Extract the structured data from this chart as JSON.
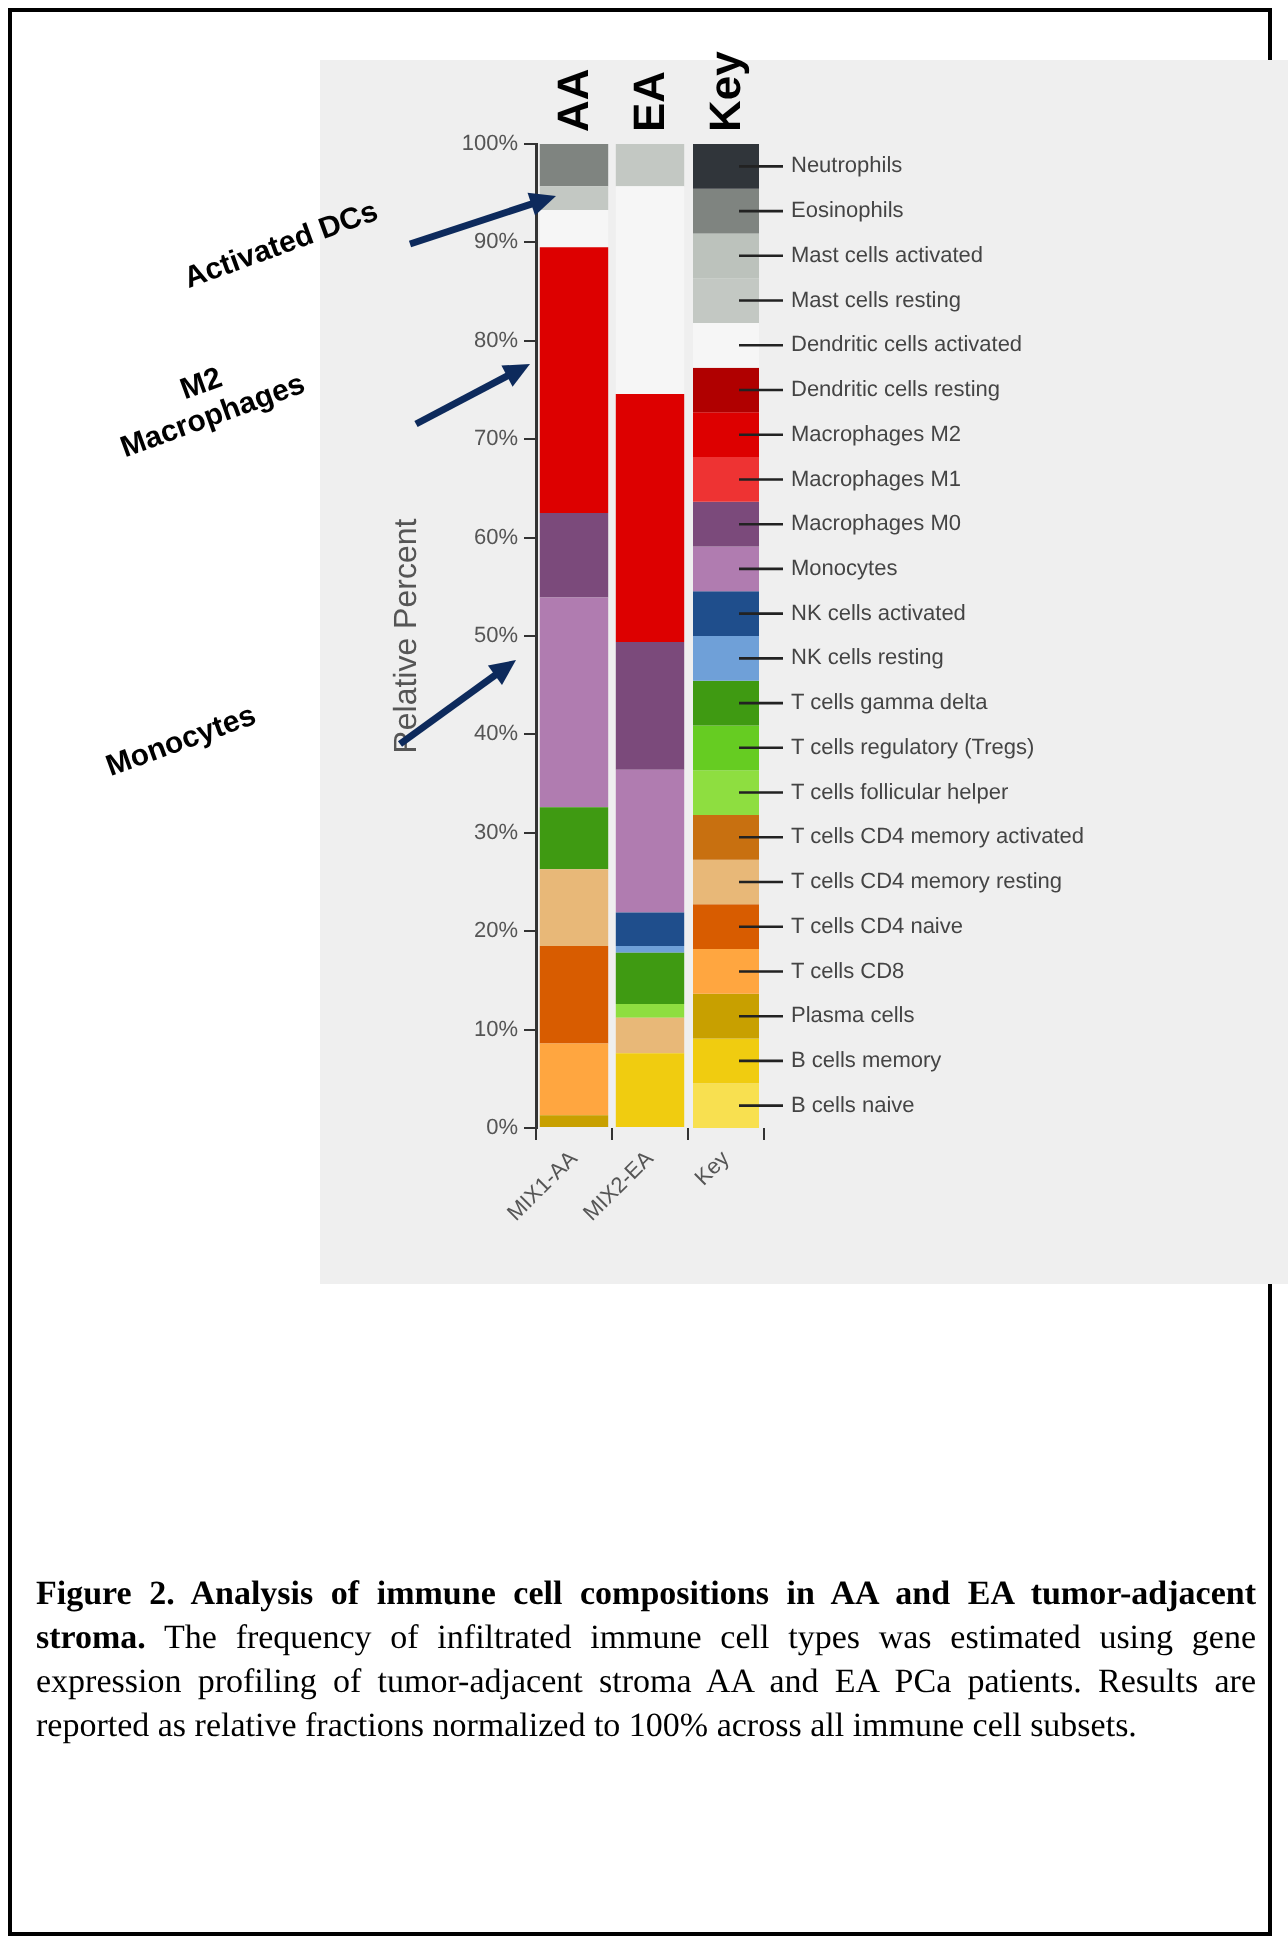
{
  "chart_data": {
    "type": "bar",
    "stacked": true,
    "ylabel": "Relative Percent",
    "categories": [
      "MIX1-AA",
      "MIX2-EA",
      "Key"
    ],
    "series": [
      {
        "name": "B cells naive",
        "color": "#f8e050",
        "values": [
          null,
          null,
          null
        ]
      },
      {
        "name": "B cells memory",
        "color": "#f0cc10",
        "values": [
          null,
          7.6,
          null
        ]
      },
      {
        "name": "Plasma cells",
        "color": "#c8a000",
        "values": [
          1.3,
          null,
          null
        ]
      },
      {
        "name": "T cells CD8",
        "color": "#ffa640",
        "values": [
          7.3,
          null,
          null
        ]
      },
      {
        "name": "T cells CD4 naive",
        "color": "#d85c00",
        "values": [
          9.9,
          null,
          null
        ]
      },
      {
        "name": "T cells CD4 memory resting",
        "color": "#e8b878",
        "values": [
          7.8,
          3.6,
          null
        ]
      },
      {
        "name": "T cells CD4 memory activated",
        "color": "#c87010",
        "values": [
          null,
          null,
          null
        ]
      },
      {
        "name": "T cells follicular helper",
        "color": "#8ede40",
        "values": [
          null,
          1.4,
          null
        ]
      },
      {
        "name": "T cells regulatory (Tregs)",
        "color": "#66cc22",
        "values": [
          null,
          null,
          null
        ]
      },
      {
        "name": "T cells gamma delta",
        "color": "#3f9a12",
        "values": [
          6.3,
          5.2,
          null
        ]
      },
      {
        "name": "NK cells resting",
        "color": "#6fa0d8",
        "values": [
          null,
          0.7,
          null
        ]
      },
      {
        "name": "NK cells activated",
        "color": "#1f4e8c",
        "values": [
          null,
          3.4,
          null
        ]
      },
      {
        "name": "Monocytes",
        "color": "#b07cb0",
        "values": [
          21.3,
          14.5,
          null
        ]
      },
      {
        "name": "Macrophages M0",
        "color": "#7b4a7b",
        "values": [
          8.6,
          13.0,
          null
        ]
      },
      {
        "name": "Macrophages M1",
        "color": "#ee3333",
        "values": [
          null,
          null,
          null
        ]
      },
      {
        "name": "Macrophages M2",
        "color": "#dd0000",
        "values": [
          27.0,
          25.2,
          null
        ]
      },
      {
        "name": "Dendritic cells resting",
        "color": "#b00000",
        "values": [
          null,
          null,
          null
        ]
      },
      {
        "name": "Dendritic cells activated",
        "color": "#f6f6f6",
        "values": [
          3.8,
          21.1,
          null
        ]
      },
      {
        "name": "Mast cells resting",
        "color": "#c3c8c3",
        "values": [
          2.4,
          4.3,
          null
        ]
      },
      {
        "name": "Mast cells activated",
        "color": "#bcc2bc",
        "values": [
          null,
          null,
          null
        ]
      },
      {
        "name": "Eosinophils",
        "color": "#7f8480",
        "values": [
          4.3,
          null,
          null
        ]
      },
      {
        "name": "Neutrophils",
        "color": "#30353a",
        "values": [
          null,
          null,
          null
        ]
      }
    ],
    "ylim": [
      0,
      100
    ],
    "yticks": [
      {
        "value": 0,
        "label": "0%"
      },
      {
        "value": 10,
        "label": "10%"
      },
      {
        "value": 20,
        "label": "20%"
      },
      {
        "value": 30,
        "label": "30%"
      },
      {
        "value": 40,
        "label": "40%"
      },
      {
        "value": 50,
        "label": "50%"
      },
      {
        "value": 60,
        "label": "60%"
      },
      {
        "value": 70,
        "label": "70%"
      },
      {
        "value": 80,
        "label": "80%"
      },
      {
        "value": 90,
        "label": "90%"
      },
      {
        "value": 100,
        "label": "100%"
      }
    ],
    "grid": false,
    "legend": "right",
    "annotations": [
      "AA",
      "EA",
      "Key",
      "Activated DCs",
      "M2 Macrophages",
      "Monocytes",
      "Figure 2. Analysis of immune cell compositions in AA and EA tumor-adjacent stroma.",
      "The frequency of infiltrated immune cell types was estimated using gene expression profiling of tumor-adjacent stroma AA and EA PCa patients. Results are reported as relative fractions normalized to 100% across all immune cell subsets."
    ]
  }
}
